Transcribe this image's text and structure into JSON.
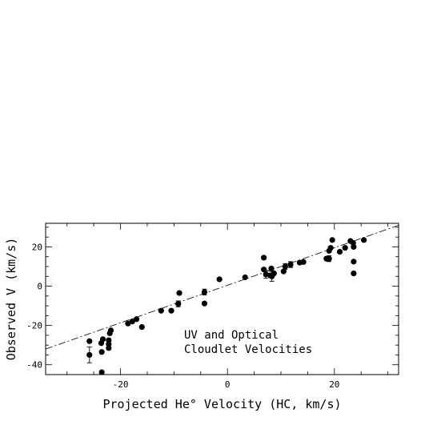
{
  "chart_data": {
    "type": "scatter",
    "title": "",
    "xlabel": "Projected He° Velocity (HC, km/s)",
    "ylabel": "Observed V (km/s)",
    "xlim": [
      -34,
      32
    ],
    "ylim": [
      -45,
      32
    ],
    "xticks": [
      -20,
      0,
      20
    ],
    "yticks": [
      -40,
      -20,
      0,
      20
    ],
    "x_tick_labels": [
      "-20",
      "0",
      "20"
    ],
    "y_tick_labels": [
      "-40",
      "-20",
      "0",
      "20"
    ],
    "grid": false,
    "legend": "none",
    "annotations": [
      "UV and Optical",
      "Cloudlet Velocities"
    ],
    "fit_line": {
      "style": "dashed",
      "from": [
        -34,
        -32
      ],
      "to": [
        32,
        31
      ]
    },
    "points": [
      {
        "x": -25.8,
        "y": -28.0
      },
      {
        "x": -25.8,
        "y": -35.0,
        "yerr": 4.0
      },
      {
        "x": -23.6,
        "y": -29.0
      },
      {
        "x": -23.5,
        "y": -33.5
      },
      {
        "x": -23.3,
        "y": -27.0
      },
      {
        "x": -23.5,
        "y": -43.8
      },
      {
        "x": -22.2,
        "y": -31.5
      },
      {
        "x": -22.2,
        "y": -29.5
      },
      {
        "x": -22.2,
        "y": -27.5
      },
      {
        "x": -22.0,
        "y": -24.0
      },
      {
        "x": -21.8,
        "y": -22.5
      },
      {
        "x": -18.6,
        "y": -19.0
      },
      {
        "x": -17.8,
        "y": -18.0
      },
      {
        "x": -17.0,
        "y": -16.8
      },
      {
        "x": -16.0,
        "y": -20.8
      },
      {
        "x": -12.4,
        "y": -12.5
      },
      {
        "x": -10.5,
        "y": -12.5
      },
      {
        "x": -9.2,
        "y": -9.0,
        "yerr": 1.5
      },
      {
        "x": -9.0,
        "y": -3.5
      },
      {
        "x": -4.3,
        "y": -3.0,
        "yerr": 1.5
      },
      {
        "x": -4.3,
        "y": -8.8
      },
      {
        "x": -1.5,
        "y": 3.5
      },
      {
        "x": 3.3,
        "y": 4.5
      },
      {
        "x": 6.8,
        "y": 14.5
      },
      {
        "x": 6.8,
        "y": 8.5
      },
      {
        "x": 7.2,
        "y": 6.0,
        "yerr": 2.0
      },
      {
        "x": 8.0,
        "y": 5.5
      },
      {
        "x": 8.2,
        "y": 9.0
      },
      {
        "x": 8.3,
        "y": 5.0,
        "yerr": 2.5
      },
      {
        "x": 8.7,
        "y": 6.5
      },
      {
        "x": 10.5,
        "y": 7.5
      },
      {
        "x": 10.8,
        "y": 10.0,
        "yerr": 1.5
      },
      {
        "x": 11.8,
        "y": 11.0,
        "yerr": 1.5
      },
      {
        "x": 13.5,
        "y": 12.0
      },
      {
        "x": 14.2,
        "y": 12.3
      },
      {
        "x": 18.5,
        "y": 14.0
      },
      {
        "x": 19.0,
        "y": 14.0,
        "yerr": 1.5
      },
      {
        "x": 19.0,
        "y": 18.0
      },
      {
        "x": 19.3,
        "y": 19.5
      },
      {
        "x": 19.6,
        "y": 23.5
      },
      {
        "x": 21.0,
        "y": 17.5
      },
      {
        "x": 22.0,
        "y": 19.5
      },
      {
        "x": 23.0,
        "y": 23.0
      },
      {
        "x": 23.5,
        "y": 22.0
      },
      {
        "x": 23.6,
        "y": 20.0
      },
      {
        "x": 23.6,
        "y": 12.5
      },
      {
        "x": 23.6,
        "y": 6.5
      },
      {
        "x": 25.5,
        "y": 23.5
      }
    ]
  }
}
